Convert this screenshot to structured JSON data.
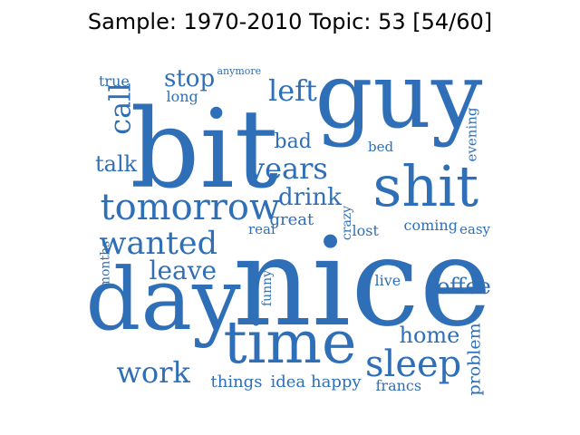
{
  "title": "Sample: 1970-2010 Topic: 53 [54/60]",
  "word_color": "#2f6fb7",
  "words": [
    {
      "text": "guy"
    },
    {
      "text": "bit"
    },
    {
      "text": "nice"
    },
    {
      "text": "day"
    },
    {
      "text": "time"
    },
    {
      "text": "shit"
    },
    {
      "text": "tomorrow"
    },
    {
      "text": "wanted"
    },
    {
      "text": "sleep"
    },
    {
      "text": "years"
    },
    {
      "text": "work"
    },
    {
      "text": "leave"
    },
    {
      "text": "left"
    },
    {
      "text": "stop"
    },
    {
      "text": "call"
    },
    {
      "text": "talk"
    },
    {
      "text": "drink"
    },
    {
      "text": "bad"
    },
    {
      "text": "home"
    },
    {
      "text": "coffee"
    },
    {
      "text": "great"
    },
    {
      "text": "true"
    },
    {
      "text": "long"
    },
    {
      "text": "anymore"
    },
    {
      "text": "bed"
    },
    {
      "text": "evening"
    },
    {
      "text": "crazy"
    },
    {
      "text": "lost"
    },
    {
      "text": "coming"
    },
    {
      "text": "easy"
    },
    {
      "text": "real"
    },
    {
      "text": "months"
    },
    {
      "text": "funny"
    },
    {
      "text": "live"
    },
    {
      "text": "problem"
    },
    {
      "text": "things"
    },
    {
      "text": "idea"
    },
    {
      "text": "happy"
    },
    {
      "text": "francs"
    }
  ]
}
